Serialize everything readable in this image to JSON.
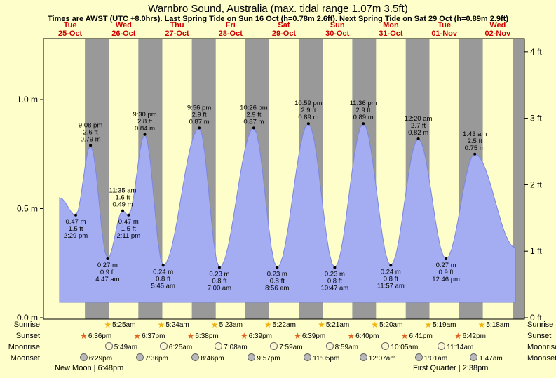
{
  "subtitle": "Times are AWST (UTC +8.0hrs). Last Spring Tide on Sun 16 Oct (h=0.78m 2.6ft). Next Spring Tide on Sat 29 Oct (h=0.89m 2.9ft)",
  "colors": {
    "background": "#fdfec9",
    "night_band": "#999999",
    "tide_fill": "#a4adf1",
    "tide_stroke": "#7b86e0",
    "day_label_red": "#cc0000",
    "sunrise_star": "#eeb211",
    "sunset_star": "#e0611e",
    "moonrise_circle": "#fcf6d0",
    "moonset_circle": "#b9b9b9",
    "dot": "#000000"
  },
  "chart_data": {
    "type": "area",
    "title": "Warnbro Sound, Australia (max. tidal range 1.07m 3.5ft)",
    "days": [
      {
        "weekday": "Tue",
        "date": "25-Oct"
      },
      {
        "weekday": "Wed",
        "date": "26-Oct"
      },
      {
        "weekday": "Thu",
        "date": "27-Oct"
      },
      {
        "weekday": "Fri",
        "date": "28-Oct"
      },
      {
        "weekday": "Sat",
        "date": "29-Oct"
      },
      {
        "weekday": "Sun",
        "date": "30-Oct"
      },
      {
        "weekday": "Mon",
        "date": "31-Oct"
      },
      {
        "weekday": "Tue",
        "date": "01-Nov"
      },
      {
        "weekday": "Wed",
        "date": "02-Nov"
      }
    ],
    "y_axis_left": {
      "unit": "m",
      "ticks": [
        0,
        0.5,
        1
      ]
    },
    "y_axis_right": {
      "unit": "ft",
      "ticks": [
        0,
        1,
        2,
        3,
        4
      ]
    },
    "tide_events": [
      {
        "day": 0,
        "time": "7:15 am",
        "height_m": 0.55,
        "kind": "edge"
      },
      {
        "day": 0,
        "time": "2:29 pm",
        "height_m": 0.47,
        "height_ft": 1.5,
        "kind": "low"
      },
      {
        "day": 0,
        "time": "9:08 pm",
        "height_m": 0.79,
        "height_ft": 2.6,
        "kind": "high"
      },
      {
        "day": 1,
        "time": "4:47 am",
        "height_m": 0.27,
        "height_ft": 0.9,
        "kind": "low"
      },
      {
        "day": 1,
        "time": "11:35 am",
        "height_m": 0.49,
        "height_ft": 1.6,
        "kind": "high"
      },
      {
        "day": 1,
        "time": "2:11 pm",
        "height_m": 0.47,
        "height_ft": 1.5,
        "kind": "low"
      },
      {
        "day": 1,
        "time": "9:30 pm",
        "height_m": 0.84,
        "height_ft": 2.8,
        "kind": "high"
      },
      {
        "day": 2,
        "time": "5:45 am",
        "height_m": 0.24,
        "height_ft": 0.8,
        "kind": "low"
      },
      {
        "day": 2,
        "time": "9:56 pm",
        "height_m": 0.87,
        "height_ft": 2.9,
        "kind": "high"
      },
      {
        "day": 3,
        "time": "7:00 am",
        "height_m": 0.23,
        "height_ft": 0.8,
        "kind": "low"
      },
      {
        "day": 3,
        "time": "10:26 pm",
        "height_m": 0.87,
        "height_ft": 2.9,
        "kind": "high"
      },
      {
        "day": 4,
        "time": "8:56 am",
        "height_m": 0.23,
        "height_ft": 0.8,
        "kind": "low"
      },
      {
        "day": 4,
        "time": "10:59 pm",
        "height_m": 0.89,
        "height_ft": 2.9,
        "kind": "high"
      },
      {
        "day": 5,
        "time": "10:47 am",
        "height_m": 0.23,
        "height_ft": 0.8,
        "kind": "low"
      },
      {
        "day": 5,
        "time": "11:36 pm",
        "height_m": 0.89,
        "height_ft": 2.9,
        "kind": "high"
      },
      {
        "day": 6,
        "time": "11:57 am",
        "height_m": 0.24,
        "height_ft": 0.8,
        "kind": "low"
      },
      {
        "day": 7,
        "time": "12:20 am",
        "height_m": 0.82,
        "height_ft": 2.7,
        "kind": "high"
      },
      {
        "day": 7,
        "time": "12:46 pm",
        "height_m": 0.27,
        "height_ft": 0.9,
        "kind": "low"
      },
      {
        "day": 8,
        "time": "1:43 am",
        "height_m": 0.75,
        "height_ft": 2.5,
        "kind": "high"
      },
      {
        "day": 8,
        "time": "8:00 pm",
        "height_m": 0.32,
        "kind": "edge"
      }
    ]
  },
  "almanac": {
    "rows": [
      {
        "key": "sunrise",
        "label": "Sunrise",
        "icon": "sunrise-star",
        "entries": [
          {
            "day": 1,
            "time": "5:25am"
          },
          {
            "day": 2,
            "time": "5:24am"
          },
          {
            "day": 3,
            "time": "5:23am"
          },
          {
            "day": 4,
            "time": "5:22am"
          },
          {
            "day": 5,
            "time": "5:21am"
          },
          {
            "day": 6,
            "time": "5:20am"
          },
          {
            "day": 7,
            "time": "5:19am"
          },
          {
            "day": 8,
            "time": "5:18am"
          }
        ]
      },
      {
        "key": "sunset",
        "label": "Sunset",
        "icon": "sunset-star",
        "entries": [
          {
            "day": 0,
            "time": "6:36pm"
          },
          {
            "day": 1,
            "time": "6:37pm"
          },
          {
            "day": 2,
            "time": "6:38pm"
          },
          {
            "day": 3,
            "time": "6:39pm"
          },
          {
            "day": 4,
            "time": "6:39pm"
          },
          {
            "day": 5,
            "time": "6:40pm"
          },
          {
            "day": 6,
            "time": "6:41pm"
          },
          {
            "day": 7,
            "time": "6:42pm"
          }
        ]
      },
      {
        "key": "moonrise",
        "label": "Moonrise",
        "icon": "moonrise-circle",
        "entries": [
          {
            "day": 1,
            "time": "5:49am"
          },
          {
            "day": 2,
            "time": "6:25am"
          },
          {
            "day": 3,
            "time": "7:08am"
          },
          {
            "day": 4,
            "time": "7:59am"
          },
          {
            "day": 5,
            "time": "8:59am"
          },
          {
            "day": 6,
            "time": "10:05am"
          },
          {
            "day": 7,
            "time": "11:14am"
          }
        ]
      },
      {
        "key": "moonset",
        "label": "Moonset",
        "icon": "moonset-circle",
        "entries": [
          {
            "day": 0,
            "time": "6:29pm"
          },
          {
            "day": 1,
            "time": "7:36pm"
          },
          {
            "day": 2,
            "time": "8:46pm"
          },
          {
            "day": 3,
            "time": "9:57pm"
          },
          {
            "day": 4,
            "time": "11:05pm"
          },
          {
            "day": 6,
            "time": "12:07am"
          },
          {
            "day": 7,
            "time": "1:01am"
          },
          {
            "day": 8,
            "time": "1:47am"
          }
        ]
      }
    ],
    "footer_left": "New Moon | 6:48pm",
    "footer_right": "First Quarter | 2:38pm"
  }
}
